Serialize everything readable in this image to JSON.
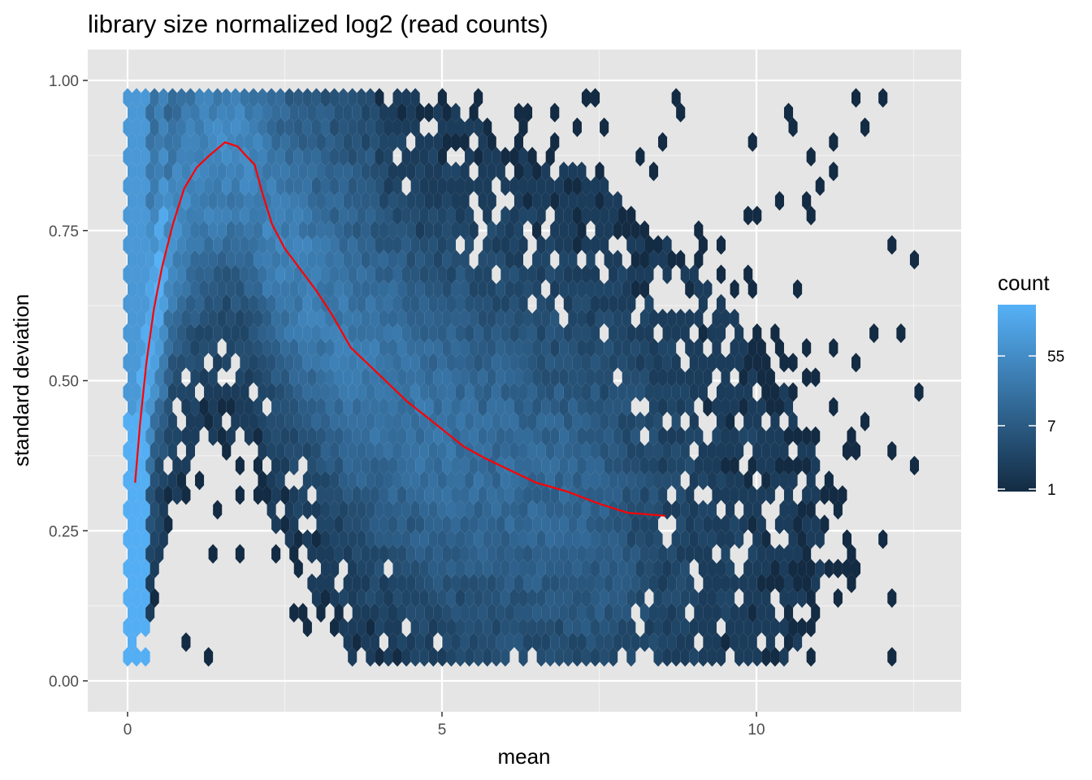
{
  "chart_data": {
    "type": "heatmap",
    "subtype": "hexbin",
    "title": "library size normalized log2 (read counts)",
    "xlabel": "mean",
    "ylabel": "standard deviation",
    "xlim": [
      -0.6,
      13.3
    ],
    "ylim": [
      -0.05,
      1.05
    ],
    "x_ticks": [
      0,
      5,
      10
    ],
    "x_tick_labels": [
      "0",
      "5",
      "10"
    ],
    "y_ticks": [
      0,
      0.25,
      0.5,
      0.75,
      1.0
    ],
    "y_tick_labels": [
      "0.00",
      "0.25",
      "0.50",
      "0.75",
      "1.00"
    ],
    "grid": true,
    "background": "#e5e5e5",
    "legend": {
      "title": "count",
      "position": "right",
      "scale": "log",
      "breaks": [
        1,
        7,
        55
      ],
      "break_labels": [
        "1",
        "7",
        "55"
      ],
      "max": 250,
      "color_low": "#132b43",
      "color_high": "#56b1f7"
    },
    "trend_line": {
      "color": "#ff0000",
      "points": [
        [
          0.12,
          0.33
        ],
        [
          0.2,
          0.43
        ],
        [
          0.3,
          0.53
        ],
        [
          0.42,
          0.62
        ],
        [
          0.55,
          0.69
        ],
        [
          0.72,
          0.76
        ],
        [
          0.9,
          0.82
        ],
        [
          1.1,
          0.855
        ],
        [
          1.3,
          0.875
        ],
        [
          1.55,
          0.897
        ],
        [
          1.75,
          0.89
        ],
        [
          1.88,
          0.875
        ],
        [
          2.02,
          0.86
        ],
        [
          2.15,
          0.81
        ],
        [
          2.3,
          0.76
        ],
        [
          2.5,
          0.72
        ],
        [
          2.75,
          0.685
        ],
        [
          3.0,
          0.65
        ],
        [
          3.25,
          0.61
        ],
        [
          3.55,
          0.555
        ],
        [
          3.85,
          0.525
        ],
        [
          4.15,
          0.495
        ],
        [
          4.45,
          0.465
        ],
        [
          4.75,
          0.44
        ],
        [
          5.05,
          0.415
        ],
        [
          5.35,
          0.39
        ],
        [
          5.7,
          0.37
        ],
        [
          6.1,
          0.35
        ],
        [
          6.5,
          0.33
        ],
        [
          7.0,
          0.315
        ],
        [
          7.5,
          0.295
        ],
        [
          7.95,
          0.28
        ],
        [
          8.55,
          0.275
        ]
      ]
    },
    "density_model": {
      "description": "approximate hexbin counts from gene mean/sd distribution",
      "trend_sd": "piecewise from trend_line",
      "hex_dx": 0.143,
      "hex_dy": 0.0245
    }
  }
}
